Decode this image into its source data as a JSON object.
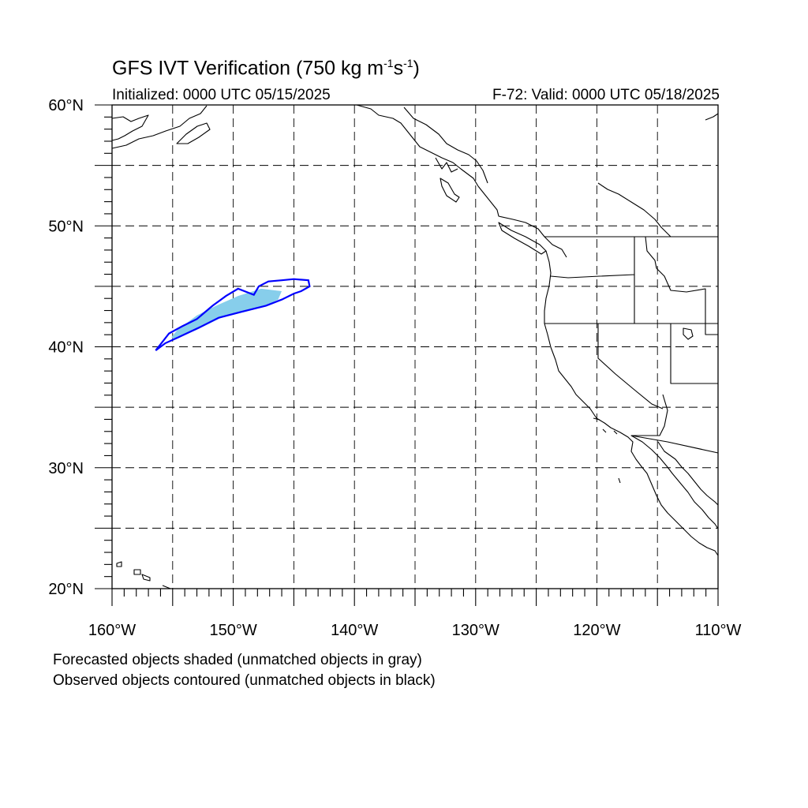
{
  "header": {
    "title_prefix": "GFS IVT Verification (750 kg m",
    "title_sup1": "-1",
    "title_mid": "s",
    "title_sup2": "-1",
    "title_suffix": ")",
    "initialized": "Initialized: 0000 UTC 05/15/2025",
    "valid": "F-72: Valid: 0000 UTC 05/18/2025"
  },
  "map": {
    "lon_range": [
      -160,
      -110
    ],
    "lat_range": [
      20,
      60
    ],
    "lat_ticks": [
      {
        "value": 60,
        "label": "60°N"
      },
      {
        "value": 50,
        "label": "50°N"
      },
      {
        "value": 40,
        "label": "40°N"
      },
      {
        "value": 30,
        "label": "30°N"
      },
      {
        "value": 20,
        "label": "20°N"
      }
    ],
    "lon_ticks": [
      {
        "value": -160,
        "label": "160°W"
      },
      {
        "value": -150,
        "label": "150°W"
      },
      {
        "value": -140,
        "label": "140°W"
      },
      {
        "value": -130,
        "label": "130°W"
      },
      {
        "value": -120,
        "label": "120°W"
      },
      {
        "value": -110,
        "label": "110°W"
      }
    ],
    "grid_spacing_deg": 5,
    "grid_style": "dashed",
    "colors": {
      "forecast_matched_fill": "#87ceeb",
      "observed_matched_contour": "#0000ff",
      "coastline": "#000000"
    },
    "forecast_object": [
      [
        -154.9,
        40.6
      ],
      [
        -153.0,
        41.4
      ],
      [
        -151.0,
        42.4
      ],
      [
        -149.0,
        42.9
      ],
      [
        -147.5,
        43.3
      ],
      [
        -146.3,
        43.9
      ],
      [
        -146.0,
        44.6
      ],
      [
        -147.7,
        44.8
      ],
      [
        -149.6,
        44.2
      ],
      [
        -151.4,
        43.4
      ],
      [
        -153.0,
        42.6
      ],
      [
        -154.6,
        41.4
      ],
      [
        -155.1,
        40.8
      ]
    ],
    "observed_object": [
      [
        -156.4,
        39.7
      ],
      [
        -155.6,
        40.3
      ],
      [
        -154.5,
        40.8
      ],
      [
        -152.8,
        41.6
      ],
      [
        -151.2,
        42.4
      ],
      [
        -149.3,
        42.9
      ],
      [
        -147.3,
        43.4
      ],
      [
        -146.0,
        43.9
      ],
      [
        -145.0,
        44.4
      ],
      [
        -144.4,
        44.6
      ],
      [
        -143.7,
        45.0
      ],
      [
        -143.8,
        45.5
      ],
      [
        -145.0,
        45.6
      ],
      [
        -146.0,
        45.5
      ],
      [
        -147.1,
        45.4
      ],
      [
        -147.9,
        45.0
      ],
      [
        -148.3,
        44.3
      ],
      [
        -149.6,
        44.8
      ],
      [
        -150.6,
        44.2
      ],
      [
        -151.7,
        43.4
      ],
      [
        -153.0,
        42.3
      ],
      [
        -154.2,
        41.7
      ],
      [
        -155.3,
        41.1
      ],
      [
        -156.0,
        40.2
      ],
      [
        -156.4,
        39.7
      ]
    ]
  },
  "footer": {
    "line1": "Forecasted objects shaded (unmatched objects in gray)",
    "line2": "Observed objects contoured (unmatched objects in black)"
  }
}
